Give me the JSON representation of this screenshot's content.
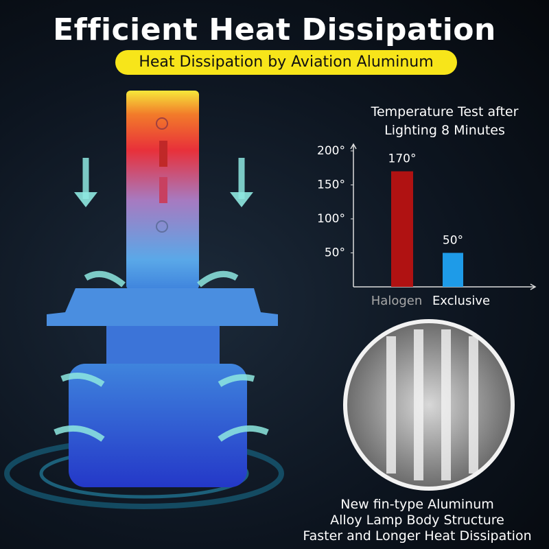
{
  "header": {
    "title": "Efficient Heat Dissipation",
    "subtitle": "Heat Dissipation by Aviation Aluminum"
  },
  "chart_data": {
    "type": "bar",
    "title": "Temperature Test after Lighting 8 Minutes",
    "categories": [
      "Halogen",
      "Exclusive"
    ],
    "values": [
      170,
      50
    ],
    "value_labels": [
      "170°",
      "50°"
    ],
    "colors": [
      "#b01212",
      "#1e9be8"
    ],
    "ylim": [
      0,
      210
    ],
    "yticks": [
      {
        "value": 50,
        "label": "50°"
      },
      {
        "value": 100,
        "label": "100°"
      },
      {
        "value": 150,
        "label": "150°"
      },
      {
        "value": 200,
        "label": "200°"
      }
    ]
  },
  "caption": [
    "New fin-type Aluminum",
    "Alloy Lamp Body Structure",
    "Faster and Longer Heat Dissipation"
  ]
}
